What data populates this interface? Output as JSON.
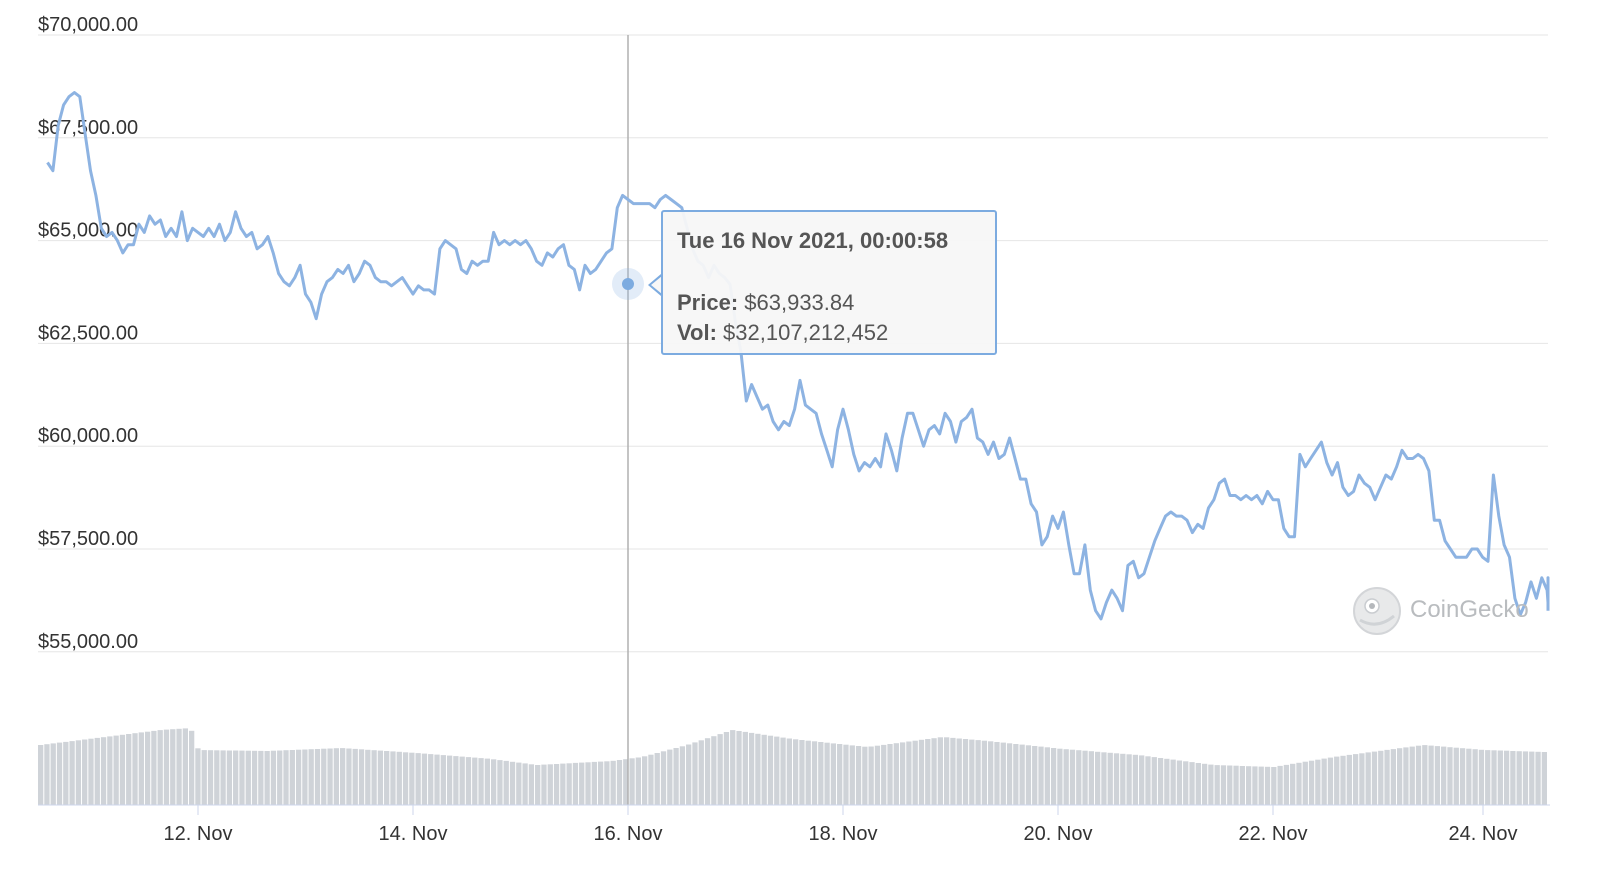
{
  "chart_data": {
    "type": "line",
    "title": "",
    "currency_axis_ticks": [
      "$70,000.00",
      "$67,500.00",
      "$65,000.00",
      "$62,500.00",
      "$60,000.00",
      "$57,500.00",
      "$55,000.00"
    ],
    "ylim": [
      53000,
      70000
    ],
    "x_tick_labels": [
      "12. Nov",
      "14. Nov",
      "16. Nov",
      "18. Nov",
      "20. Nov",
      "22. Nov",
      "24. Nov"
    ],
    "xlim_days": [
      10.6,
      24.6
    ],
    "series": [
      {
        "points": [
          [
            10.6,
            66900
          ],
          [
            10.65,
            66700
          ],
          [
            10.7,
            67800
          ],
          [
            10.75,
            68300
          ],
          [
            10.8,
            68500
          ],
          [
            10.85,
            68600
          ],
          [
            10.9,
            68500
          ],
          [
            10.95,
            67600
          ],
          [
            11.0,
            66700
          ],
          [
            11.05,
            66100
          ],
          [
            11.1,
            65300
          ],
          [
            11.15,
            65100
          ],
          [
            11.2,
            65200
          ],
          [
            11.25,
            65000
          ],
          [
            11.3,
            64700
          ],
          [
            11.35,
            64900
          ],
          [
            11.4,
            64900
          ],
          [
            11.45,
            65400
          ],
          [
            11.5,
            65200
          ],
          [
            11.55,
            65600
          ],
          [
            11.6,
            65400
          ],
          [
            11.65,
            65500
          ],
          [
            11.7,
            65100
          ],
          [
            11.75,
            65300
          ],
          [
            11.8,
            65100
          ],
          [
            11.85,
            65700
          ],
          [
            11.9,
            65000
          ],
          [
            11.95,
            65300
          ],
          [
            12.0,
            65200
          ],
          [
            12.05,
            65100
          ],
          [
            12.1,
            65300
          ],
          [
            12.15,
            65100
          ],
          [
            12.2,
            65400
          ],
          [
            12.25,
            65000
          ],
          [
            12.3,
            65200
          ],
          [
            12.35,
            65700
          ],
          [
            12.4,
            65300
          ],
          [
            12.45,
            65100
          ],
          [
            12.5,
            65200
          ],
          [
            12.55,
            64800
          ],
          [
            12.6,
            64900
          ],
          [
            12.65,
            65100
          ],
          [
            12.7,
            64700
          ],
          [
            12.75,
            64200
          ],
          [
            12.8,
            64000
          ],
          [
            12.85,
            63900
          ],
          [
            12.9,
            64100
          ],
          [
            12.95,
            64400
          ],
          [
            13.0,
            63700
          ],
          [
            13.05,
            63500
          ],
          [
            13.1,
            63100
          ],
          [
            13.15,
            63700
          ],
          [
            13.2,
            64000
          ],
          [
            13.25,
            64100
          ],
          [
            13.3,
            64300
          ],
          [
            13.35,
            64200
          ],
          [
            13.4,
            64400
          ],
          [
            13.45,
            64000
          ],
          [
            13.5,
            64200
          ],
          [
            13.55,
            64500
          ],
          [
            13.6,
            64400
          ],
          [
            13.65,
            64100
          ],
          [
            13.7,
            64000
          ],
          [
            13.75,
            64000
          ],
          [
            13.8,
            63900
          ],
          [
            13.85,
            64000
          ],
          [
            13.9,
            64100
          ],
          [
            13.95,
            63900
          ],
          [
            14.0,
            63700
          ],
          [
            14.05,
            63900
          ],
          [
            14.1,
            63800
          ],
          [
            14.15,
            63800
          ],
          [
            14.2,
            63700
          ],
          [
            14.25,
            64800
          ],
          [
            14.3,
            65000
          ],
          [
            14.35,
            64900
          ],
          [
            14.4,
            64800
          ],
          [
            14.45,
            64300
          ],
          [
            14.5,
            64200
          ],
          [
            14.55,
            64500
          ],
          [
            14.6,
            64400
          ],
          [
            14.65,
            64500
          ],
          [
            14.7,
            64500
          ],
          [
            14.75,
            65200
          ],
          [
            14.8,
            64900
          ],
          [
            14.85,
            65000
          ],
          [
            14.9,
            64900
          ],
          [
            14.95,
            65000
          ],
          [
            15.0,
            64900
          ],
          [
            15.05,
            65000
          ],
          [
            15.1,
            64800
          ],
          [
            15.15,
            64500
          ],
          [
            15.2,
            64400
          ],
          [
            15.25,
            64700
          ],
          [
            15.3,
            64600
          ],
          [
            15.35,
            64800
          ],
          [
            15.4,
            64900
          ],
          [
            15.45,
            64400
          ],
          [
            15.5,
            64300
          ],
          [
            15.55,
            63800
          ],
          [
            15.6,
            64400
          ],
          [
            15.65,
            64200
          ],
          [
            15.7,
            64300
          ],
          [
            15.75,
            64500
          ],
          [
            15.8,
            64700
          ],
          [
            15.85,
            64800
          ],
          [
            15.9,
            65800
          ],
          [
            15.95,
            66100
          ],
          [
            16.0,
            66000
          ],
          [
            16.05,
            65900
          ],
          [
            16.1,
            65900
          ],
          [
            16.15,
            65900
          ],
          [
            16.2,
            65900
          ],
          [
            16.25,
            65800
          ],
          [
            16.3,
            66000
          ],
          [
            16.35,
            66100
          ],
          [
            16.4,
            66000
          ],
          [
            16.45,
            65900
          ],
          [
            16.5,
            65800
          ],
          [
            16.55,
            65300
          ],
          [
            16.6,
            64800
          ],
          [
            16.65,
            64500
          ],
          [
            16.7,
            64400
          ],
          [
            16.75,
            64100
          ],
          [
            16.8,
            64400
          ],
          [
            16.85,
            64200
          ],
          [
            16.9,
            64100
          ],
          [
            16.95,
            63934
          ],
          [
            17.0,
            63000
          ],
          [
            17.05,
            62300
          ],
          [
            17.1,
            61100
          ],
          [
            17.15,
            61500
          ],
          [
            17.2,
            61200
          ],
          [
            17.25,
            60900
          ],
          [
            17.3,
            61000
          ],
          [
            17.35,
            60600
          ],
          [
            17.4,
            60400
          ],
          [
            17.45,
            60600
          ],
          [
            17.5,
            60500
          ],
          [
            17.55,
            60900
          ],
          [
            17.6,
            61600
          ],
          [
            17.65,
            61000
          ],
          [
            17.7,
            60900
          ],
          [
            17.75,
            60800
          ],
          [
            17.8,
            60300
          ],
          [
            17.85,
            59900
          ],
          [
            17.9,
            59500
          ],
          [
            17.95,
            60400
          ],
          [
            18.0,
            60900
          ],
          [
            18.05,
            60400
          ],
          [
            18.1,
            59800
          ],
          [
            18.15,
            59400
          ],
          [
            18.2,
            59600
          ],
          [
            18.25,
            59500
          ],
          [
            18.3,
            59700
          ],
          [
            18.35,
            59500
          ],
          [
            18.4,
            60300
          ],
          [
            18.45,
            59900
          ],
          [
            18.5,
            59400
          ],
          [
            18.55,
            60200
          ],
          [
            18.6,
            60800
          ],
          [
            18.65,
            60800
          ],
          [
            18.7,
            60400
          ],
          [
            18.75,
            60000
          ],
          [
            18.8,
            60400
          ],
          [
            18.85,
            60500
          ],
          [
            18.9,
            60300
          ],
          [
            18.95,
            60800
          ],
          [
            19.0,
            60600
          ],
          [
            19.05,
            60100
          ],
          [
            19.1,
            60600
          ],
          [
            19.15,
            60700
          ],
          [
            19.2,
            60900
          ],
          [
            19.25,
            60200
          ],
          [
            19.3,
            60100
          ],
          [
            19.35,
            59800
          ],
          [
            19.4,
            60100
          ],
          [
            19.45,
            59700
          ],
          [
            19.5,
            59800
          ],
          [
            19.55,
            60200
          ],
          [
            19.6,
            59700
          ],
          [
            19.65,
            59200
          ],
          [
            19.7,
            59200
          ],
          [
            19.75,
            58600
          ],
          [
            19.8,
            58400
          ],
          [
            19.85,
            57600
          ],
          [
            19.9,
            57800
          ],
          [
            19.95,
            58300
          ],
          [
            20.0,
            58000
          ],
          [
            20.05,
            58400
          ],
          [
            20.1,
            57600
          ],
          [
            20.15,
            56900
          ],
          [
            20.2,
            56900
          ],
          [
            20.25,
            57600
          ],
          [
            20.3,
            56500
          ],
          [
            20.35,
            56000
          ],
          [
            20.4,
            55800
          ],
          [
            20.45,
            56200
          ],
          [
            20.5,
            56500
          ],
          [
            20.55,
            56300
          ],
          [
            20.6,
            56000
          ],
          [
            20.65,
            57100
          ],
          [
            20.7,
            57200
          ],
          [
            20.75,
            56800
          ],
          [
            20.8,
            56900
          ],
          [
            20.85,
            57300
          ],
          [
            20.9,
            57700
          ],
          [
            20.95,
            58000
          ],
          [
            21.0,
            58300
          ],
          [
            21.05,
            58400
          ],
          [
            21.1,
            58300
          ],
          [
            21.15,
            58300
          ],
          [
            21.2,
            58200
          ],
          [
            21.25,
            57900
          ],
          [
            21.3,
            58100
          ],
          [
            21.35,
            58000
          ],
          [
            21.4,
            58500
          ],
          [
            21.45,
            58700
          ],
          [
            21.5,
            59100
          ],
          [
            21.55,
            59200
          ],
          [
            21.6,
            58800
          ],
          [
            21.65,
            58800
          ],
          [
            21.7,
            58700
          ],
          [
            21.75,
            58800
          ],
          [
            21.8,
            58700
          ],
          [
            21.85,
            58800
          ],
          [
            21.9,
            58600
          ],
          [
            21.95,
            58900
          ],
          [
            22.0,
            58700
          ],
          [
            22.05,
            58700
          ],
          [
            22.1,
            58000
          ],
          [
            22.15,
            57800
          ],
          [
            22.2,
            57800
          ],
          [
            22.25,
            59800
          ],
          [
            22.3,
            59500
          ],
          [
            22.35,
            59700
          ],
          [
            22.4,
            59900
          ],
          [
            22.45,
            60100
          ],
          [
            22.5,
            59600
          ],
          [
            22.55,
            59300
          ],
          [
            22.6,
            59600
          ],
          [
            22.65,
            59000
          ],
          [
            22.7,
            58800
          ],
          [
            22.75,
            58900
          ],
          [
            22.8,
            59300
          ],
          [
            22.85,
            59100
          ],
          [
            22.9,
            59000
          ],
          [
            22.95,
            58700
          ],
          [
            23.0,
            59000
          ],
          [
            23.05,
            59300
          ],
          [
            23.1,
            59200
          ],
          [
            23.15,
            59500
          ],
          [
            23.2,
            59900
          ],
          [
            23.25,
            59700
          ],
          [
            23.3,
            59700
          ],
          [
            23.35,
            59800
          ],
          [
            23.4,
            59700
          ],
          [
            23.45,
            59400
          ],
          [
            23.5,
            58200
          ],
          [
            23.55,
            58200
          ],
          [
            23.6,
            57700
          ],
          [
            23.65,
            57500
          ],
          [
            23.7,
            57300
          ],
          [
            23.75,
            57300
          ],
          [
            23.8,
            57300
          ],
          [
            23.85,
            57500
          ],
          [
            23.9,
            57500
          ],
          [
            23.95,
            57300
          ],
          [
            24.0,
            57200
          ],
          [
            24.05,
            59300
          ],
          [
            24.1,
            58300
          ],
          [
            24.15,
            57600
          ],
          [
            24.2,
            57300
          ],
          [
            24.25,
            56300
          ],
          [
            24.3,
            55900
          ],
          [
            24.35,
            56200
          ],
          [
            24.4,
            56700
          ],
          [
            24.45,
            56300
          ],
          [
            24.5,
            56800
          ],
          [
            24.55,
            56500
          ],
          [
            24.6,
            56200
          ],
          [
            24.65,
            56500
          ],
          [
            24.7,
            56800
          ],
          [
            24.75,
            56000
          ]
        ],
        "color": "#8db3e2"
      }
    ],
    "volume_bar_count": 240,
    "grid": true
  },
  "tooltip": {
    "date": "Tue 16 Nov 2021, 00:00:58",
    "price_key": "Price:",
    "price_value": " $63,933.84",
    "vol_key": "Vol:",
    "vol_value": " $32,107,212,452"
  },
  "watermark": {
    "text": "CoinGecko",
    "logo_icon": "gecko-logo-icon"
  },
  "colors": {
    "line": "#8db3e2",
    "grid": "#e6e6e6",
    "volume": "#cfd3d8",
    "crosshair": "#b0b0b0",
    "tooltip_border": "#7cabe0"
  }
}
